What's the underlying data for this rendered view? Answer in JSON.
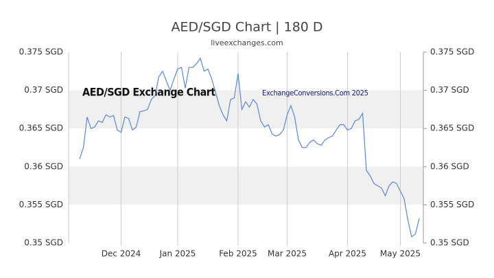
{
  "chart_data": {
    "type": "line",
    "title": "AED/SGD Chart | 180 D",
    "subtitle": "liveexchanges.com",
    "annotations": [
      "AED/SGD Exchange Chart",
      "ExchangeConversions.Com 2025"
    ],
    "categories": [
      null,
      null,
      null,
      null,
      null,
      null,
      null,
      null,
      null,
      null,
      null,
      "Dec 2024",
      null,
      null,
      null,
      null,
      null,
      null,
      null,
      null,
      null,
      null,
      null,
      null,
      null,
      null,
      "Jan 2025",
      null,
      null,
      null,
      null,
      null,
      null,
      null,
      null,
      null,
      null,
      null,
      null,
      null,
      null,
      null,
      "Feb 2025",
      null,
      null,
      null,
      null,
      null,
      null,
      null,
      null,
      null,
      null,
      null,
      null,
      "Mar 2025",
      null,
      null,
      null,
      null,
      null,
      null,
      null,
      null,
      null,
      null,
      null,
      null,
      null,
      null,
      null,
      "Apr 2025",
      null,
      null,
      null,
      null,
      null,
      null,
      null,
      null,
      null,
      null,
      null,
      null,
      null,
      "May 2025",
      null,
      null,
      null,
      null,
      null
    ],
    "values": [
      0.361,
      0.3625,
      0.3665,
      0.365,
      0.3652,
      0.366,
      0.3658,
      0.3668,
      0.3665,
      0.3667,
      0.3648,
      0.3645,
      0.3665,
      0.3663,
      0.3648,
      0.3652,
      0.3672,
      0.3673,
      0.3675,
      0.3688,
      0.3693,
      0.3718,
      0.3725,
      0.3712,
      0.37,
      0.3715,
      0.3728,
      0.373,
      0.3703,
      0.373,
      0.373,
      0.3735,
      0.3742,
      0.3725,
      0.3728,
      0.3715,
      0.3698,
      0.368,
      0.3668,
      0.366,
      0.3688,
      0.369,
      0.3722,
      0.3675,
      0.3685,
      0.3678,
      0.3688,
      0.3682,
      0.366,
      0.3652,
      0.3655,
      0.3643,
      0.364,
      0.3642,
      0.3648,
      0.3668,
      0.368,
      0.3665,
      0.3635,
      0.3625,
      0.3625,
      0.3632,
      0.3635,
      0.363,
      0.3628,
      0.3635,
      0.3638,
      0.364,
      0.3648,
      0.3655,
      0.3655,
      0.3648,
      0.365,
      0.366,
      0.3662,
      0.367,
      0.3595,
      0.3588,
      0.3578,
      0.3575,
      0.3572,
      0.3562,
      0.3575,
      0.358,
      0.3578,
      0.3568,
      0.3558,
      0.353,
      0.3508,
      0.3512,
      0.3532
    ],
    "color": "#5b87d6",
    "ylim": [
      0.35,
      0.375
    ],
    "yticks": [
      {
        "value": 0.35,
        "label": "0.35 SGD"
      },
      {
        "value": 0.355,
        "label": "0.355 SGD"
      },
      {
        "value": 0.36,
        "label": "0.36 SGD"
      },
      {
        "value": 0.365,
        "label": "0.365 SGD"
      },
      {
        "value": 0.37,
        "label": "0.37 SGD"
      },
      {
        "value": 0.375,
        "label": "0.375 SGD"
      }
    ],
    "grid": true
  }
}
